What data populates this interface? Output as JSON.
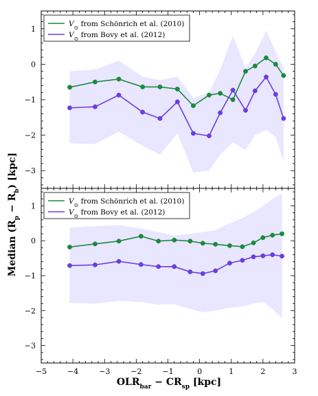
{
  "figure": {
    "ylabel": "Median (R_p − R_b) [kpc]",
    "xlabel": "OLR_bar − CR_sp [kpc]"
  },
  "chart_data": [
    {
      "type": "line",
      "panel": "top",
      "xlim": [
        -5,
        3
      ],
      "ylim": [
        -3.5,
        1.5
      ],
      "xticks": [
        -5,
        -4,
        -3,
        -2,
        -1,
        0,
        1,
        2,
        3
      ],
      "yticks": [
        -3,
        -2,
        -1,
        0,
        1
      ],
      "grid": false,
      "legend_position": "top-left",
      "x": [
        -4.1,
        -3.3,
        -2.55,
        -1.8,
        -1.25,
        -0.7,
        -0.2,
        0.3,
        0.65,
        1.05,
        1.45,
        1.75,
        2.1,
        2.4,
        2.65
      ],
      "series": [
        {
          "name": "V⊙ from Schönrich et al. (2010)",
          "color": "#1a8a3c",
          "values": [
            -0.65,
            -0.5,
            -0.42,
            -0.64,
            -0.64,
            -0.7,
            -1.17,
            -0.87,
            -0.82,
            -1.0,
            -0.2,
            -0.05,
            0.18,
            0.0,
            -0.32
          ]
        },
        {
          "name": "V⊙ from Bovy et al. (2012)",
          "color": "#6a3ee0",
          "values": [
            -1.23,
            -1.2,
            -0.87,
            -1.35,
            -1.53,
            -1.06,
            -1.95,
            -2.02,
            -1.37,
            -0.73,
            -1.3,
            -0.75,
            -0.36,
            -0.85,
            -1.53
          ]
        }
      ],
      "band": {
        "color": "#e9e6ff",
        "x": [
          -4.1,
          -3.3,
          -2.55,
          -1.8,
          -1.25,
          -0.7,
          -0.2,
          0.3,
          0.65,
          1.05,
          1.45,
          1.75,
          2.1,
          2.4,
          2.65
        ],
        "upper": [
          -0.2,
          -0.15,
          0.1,
          -0.35,
          -0.45,
          -0.35,
          -0.95,
          -0.8,
          -0.15,
          0.8,
          -0.1,
          0.3,
          0.95,
          0.35,
          -0.1
        ],
        "lower": [
          -2.23,
          -2.25,
          -1.9,
          -2.3,
          -2.55,
          -1.95,
          -3.05,
          -3.0,
          -2.55,
          -2.2,
          -2.42,
          -2.0,
          -1.85,
          -2.05,
          -2.75
        ]
      }
    },
    {
      "type": "line",
      "panel": "bottom",
      "xlim": [
        -5,
        3
      ],
      "ylim": [
        -3.5,
        1.5
      ],
      "xticks": [
        -5,
        -4,
        -3,
        -2,
        -1,
        0,
        1,
        2,
        3
      ],
      "yticks": [
        -3,
        -2,
        -1,
        0,
        1
      ],
      "xticklabels": [
        "−5",
        "−4",
        "−3",
        "−2",
        "−1",
        "0",
        "1",
        "2",
        "3"
      ],
      "grid": false,
      "legend_position": "top-left",
      "x": [
        -4.1,
        -3.3,
        -2.55,
        -1.85,
        -1.3,
        -0.8,
        -0.3,
        0.1,
        0.5,
        0.95,
        1.35,
        1.7,
        2.0,
        2.3,
        2.6
      ],
      "series": [
        {
          "name": "V⊙ from Schönrich et al. (2010)",
          "color": "#1a8a3c",
          "values": [
            -0.18,
            -0.09,
            -0.01,
            0.13,
            -0.01,
            0.02,
            -0.01,
            -0.07,
            -0.1,
            -0.14,
            -0.17,
            -0.06,
            0.09,
            0.16,
            0.2
          ]
        },
        {
          "name": "V⊙ from Bovy et al. (2012)",
          "color": "#6a3ee0",
          "values": [
            -0.71,
            -0.69,
            -0.59,
            -0.68,
            -0.74,
            -0.74,
            -0.89,
            -0.94,
            -0.86,
            -0.64,
            -0.56,
            -0.46,
            -0.43,
            -0.4,
            -0.44
          ]
        }
      ],
      "band": {
        "color": "#e9e6ff",
        "x": [
          -4.1,
          -3.3,
          -2.55,
          -1.85,
          -1.3,
          -0.8,
          -0.3,
          0.1,
          0.5,
          0.95,
          1.35,
          1.7,
          2.0,
          2.3,
          2.6
        ],
        "upper": [
          0.38,
          0.42,
          0.45,
          0.35,
          0.25,
          0.15,
          0.2,
          0.25,
          0.3,
          0.5,
          0.65,
          0.82,
          1.0,
          1.2,
          1.35
        ],
        "lower": [
          -1.78,
          -1.8,
          -1.72,
          -1.75,
          -1.83,
          -1.82,
          -1.95,
          -2.05,
          -2.0,
          -1.92,
          -1.88,
          -1.8,
          -1.75,
          -1.95,
          -2.22
        ]
      }
    }
  ]
}
